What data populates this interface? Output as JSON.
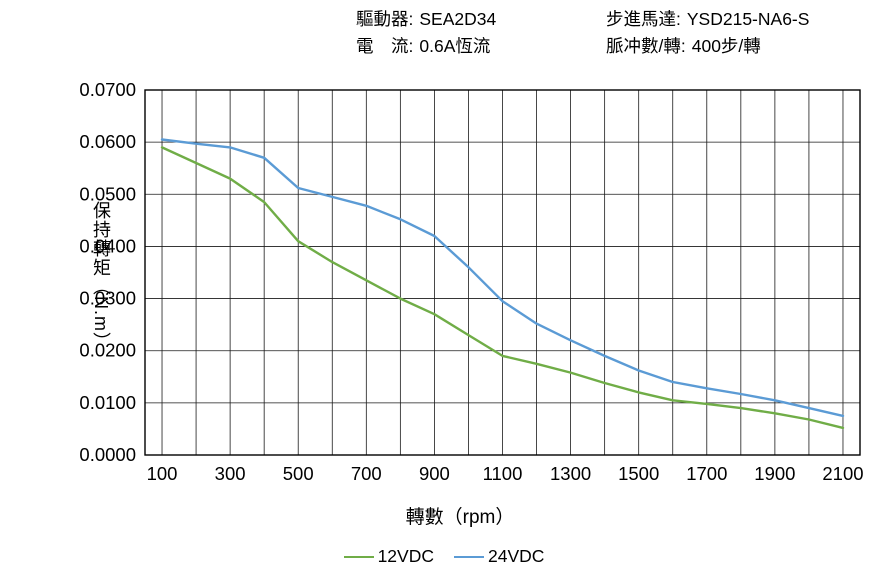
{
  "header": {
    "driver_label": "驅動器:",
    "driver_value": "SEA2D34",
    "current_label": "電　流:",
    "current_value": "0.6A恆流",
    "motor_label": "步進馬達:",
    "motor_value": "YSD215-NA6-S",
    "pulse_label": "脈冲數/轉:",
    "pulse_value": "400步/轉"
  },
  "chart_data": {
    "type": "line",
    "title": "",
    "xlabel": "轉數（rpm）",
    "ylabel": "保持轉矩（N.m）",
    "xlim": [
      50,
      2150
    ],
    "ylim": [
      0.0,
      0.07
    ],
    "x_grid_step": 100,
    "y_grid_step": 0.01,
    "grid": true,
    "legend_position": "bottom",
    "x_ticks": [
      100,
      300,
      500,
      700,
      900,
      1100,
      1300,
      1500,
      1700,
      1900,
      2100
    ],
    "y_tick_labels": [
      "0.0000",
      "0.0100",
      "0.0200",
      "0.0300",
      "0.0400",
      "0.0500",
      "0.0600",
      "0.0700"
    ],
    "x": [
      100,
      200,
      300,
      400,
      500,
      600,
      700,
      800,
      900,
      1000,
      1100,
      1200,
      1300,
      1400,
      1500,
      1600,
      1700,
      1800,
      1900,
      2000,
      2100
    ],
    "series": [
      {
        "name": "12VDC",
        "color": "#70AD47",
        "values": [
          0.059,
          0.056,
          0.053,
          0.0485,
          0.041,
          0.037,
          0.0335,
          0.03,
          0.027,
          0.023,
          0.019,
          0.0175,
          0.0158,
          0.0138,
          0.012,
          0.0105,
          0.0098,
          0.009,
          0.008,
          0.0068,
          0.0052
        ]
      },
      {
        "name": "24VDC",
        "color": "#5B9BD5",
        "values": [
          0.0605,
          0.0597,
          0.059,
          0.057,
          0.0512,
          0.0495,
          0.0478,
          0.0452,
          0.042,
          0.036,
          0.0295,
          0.0252,
          0.022,
          0.019,
          0.0162,
          0.014,
          0.0128,
          0.0117,
          0.0105,
          0.009,
          0.0075
        ]
      }
    ]
  }
}
